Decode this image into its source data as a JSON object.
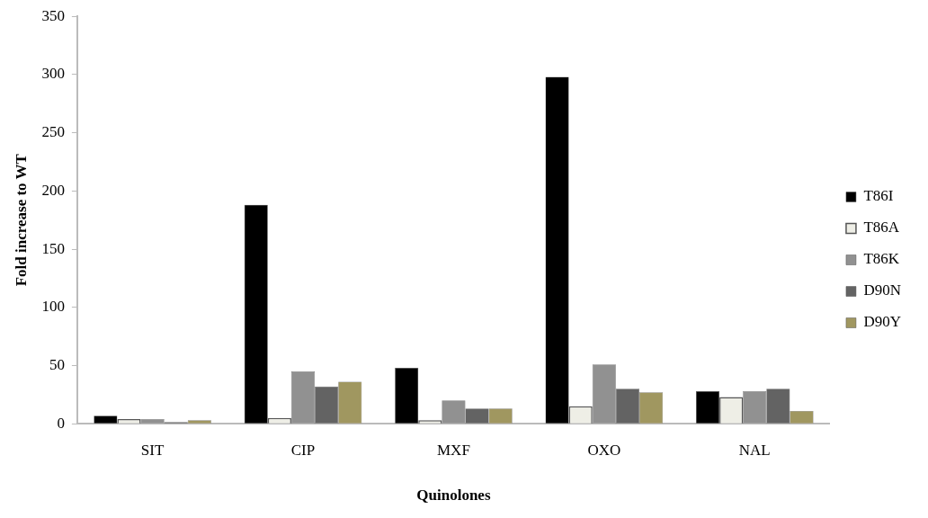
{
  "chart_data": {
    "type": "bar",
    "xlabel": "Quinolones",
    "ylabel": "Fold increase to WT",
    "categories": [
      "SIT",
      "CIP",
      "MXF",
      "OXO",
      "NAL"
    ],
    "series": [
      {
        "name": "T86I",
        "color": "#000000",
        "values": [
          7,
          188,
          48,
          298,
          28
        ]
      },
      {
        "name": "T86A",
        "color": "#eeeee6",
        "values": [
          4,
          5,
          3,
          15,
          23
        ]
      },
      {
        "name": "T86K",
        "color": "#919191",
        "values": [
          4,
          45,
          20,
          51,
          28
        ]
      },
      {
        "name": "D90N",
        "color": "#636363",
        "values": [
          1.5,
          32,
          13,
          30,
          30
        ]
      },
      {
        "name": "D90Y",
        "color": "#a09760",
        "values": [
          3,
          36,
          13,
          27,
          11
        ]
      }
    ],
    "ylim": [
      0,
      350
    ],
    "yticks": [
      0,
      50,
      100,
      150,
      200,
      250,
      300,
      350
    ],
    "grid": false,
    "legend": "right"
  }
}
